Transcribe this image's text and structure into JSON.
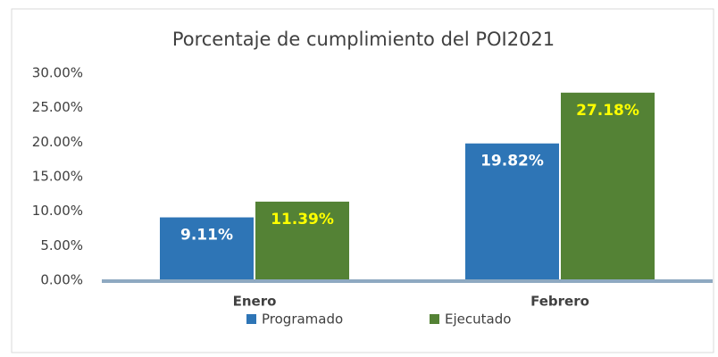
{
  "chart_data": {
    "type": "bar",
    "title": "Porcentaje de cumplimiento del POI2021",
    "categories": [
      "Enero",
      "Febrero"
    ],
    "series": [
      {
        "name": "Programado",
        "color": "#2e75b6",
        "label_color": "#ffffff",
        "values": [
          9.11,
          19.82
        ],
        "value_labels": [
          "9.11%",
          "19.82%"
        ]
      },
      {
        "name": "Ejecutado",
        "color": "#548235",
        "label_color": "#ffff00",
        "values": [
          11.39,
          27.18
        ],
        "value_labels": [
          "11.39%",
          "27.18%"
        ]
      }
    ],
    "ylim": [
      0,
      30
    ],
    "yticks": [
      {
        "value": 0,
        "label": "0.00%"
      },
      {
        "value": 5,
        "label": "5.00%"
      },
      {
        "value": 10,
        "label": "10.00%"
      },
      {
        "value": 15,
        "label": "15.00%"
      },
      {
        "value": 20,
        "label": "20.00%"
      },
      {
        "value": 25,
        "label": "25.00%"
      },
      {
        "value": 30,
        "label": "30.00%"
      }
    ],
    "grid": false,
    "legend": "bottom"
  }
}
